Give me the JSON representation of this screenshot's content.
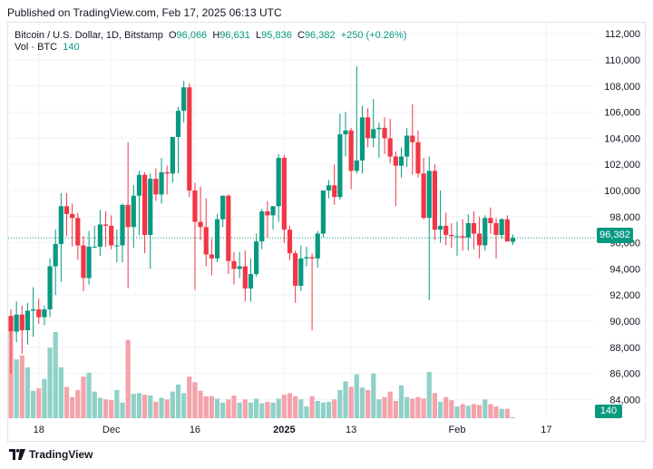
{
  "header": {
    "published": "Published on TradingView.com, Feb 17, 2025 06:13 UTC"
  },
  "legend": {
    "symbol": "Bitcoin / U.S. Dollar, 1D, Bitstamp",
    "o_label": "O",
    "o_value": "96,066",
    "h_label": "H",
    "h_value": "96,631",
    "l_label": "L",
    "l_value": "95,836",
    "c_label": "C",
    "c_value": "96,382",
    "change": "+250 (+0.26%)",
    "vol_label": "Vol · BTC",
    "vol_value": "140"
  },
  "price_badge": "96,382",
  "volume_badge": "140",
  "footer": {
    "brand": "TradingView"
  },
  "colors": {
    "up": "#089981",
    "down": "#f23645",
    "up_vol": "#8fd1c8",
    "down_vol": "#f4a3ab",
    "grid": "#f0f3fa"
  },
  "chart_data": {
    "type": "candlestick",
    "title": "Bitcoin / U.S. Dollar, 1D, Bitstamp",
    "ylim": [
      82500,
      112500
    ],
    "y_ticks": [
      84000,
      86000,
      88000,
      90000,
      92000,
      94000,
      96000,
      98000,
      100000,
      102000,
      104000,
      106000,
      108000,
      110000,
      112000
    ],
    "y_tick_labels": [
      "84,000",
      "86,000",
      "88,000",
      "90,000",
      "92,000",
      "94,000",
      "96,000",
      "98,000",
      "100,000",
      "102,000",
      "104,000",
      "106,000",
      "108,000",
      "110,000",
      "112,000"
    ],
    "x_labels": [
      {
        "label": "18",
        "index": 5
      },
      {
        "label": "Dec",
        "index": 18
      },
      {
        "label": "16",
        "index": 33
      },
      {
        "label": "2025",
        "index": 49
      },
      {
        "label": "13",
        "index": 61
      },
      {
        "label": "Feb",
        "index": 80
      },
      {
        "label": "17",
        "index": 96
      }
    ],
    "last_price": 96382,
    "candles": [
      [
        90400,
        90900,
        86000,
        89200,
        11000
      ],
      [
        89200,
        91500,
        88400,
        90500,
        7500
      ],
      [
        90500,
        91200,
        87500,
        89300,
        8000
      ],
      [
        89300,
        91400,
        88200,
        90800,
        6500
      ],
      [
        90800,
        92600,
        88800,
        90900,
        3500
      ],
      [
        90900,
        91700,
        89800,
        90300,
        3800
      ],
      [
        90300,
        91200,
        89700,
        90900,
        5000
      ],
      [
        90900,
        94800,
        90300,
        94200,
        9000
      ],
      [
        94200,
        97000,
        92000,
        95900,
        11000
      ],
      [
        95900,
        99800,
        93000,
        98800,
        6500
      ],
      [
        98800,
        99800,
        96500,
        98200,
        4000
      ],
      [
        98200,
        99000,
        95700,
        97900,
        2700
      ],
      [
        97900,
        98300,
        94700,
        95800,
        3600
      ],
      [
        95800,
        96500,
        92300,
        93300,
        5300
      ],
      [
        93300,
        96900,
        92800,
        95700,
        5800
      ],
      [
        95700,
        97300,
        95600,
        95700,
        3400
      ],
      [
        95700,
        98500,
        95000,
        97400,
        2600
      ],
      [
        97400,
        98400,
        95700,
        97300,
        2400
      ],
      [
        97300,
        98100,
        95500,
        95800,
        2300
      ],
      [
        95800,
        97000,
        94500,
        95800,
        3600
      ],
      [
        95800,
        99000,
        94500,
        98900,
        2000
      ],
      [
        98900,
        103700,
        92500,
        97200,
        10000
      ],
      [
        97200,
        100400,
        95600,
        99600,
        3100
      ],
      [
        99600,
        101500,
        96600,
        101200,
        3200
      ],
      [
        101200,
        101400,
        95200,
        96600,
        3000
      ],
      [
        96600,
        101300,
        94000,
        100900,
        2900
      ],
      [
        100900,
        101700,
        99200,
        99700,
        2100
      ],
      [
        99700,
        102500,
        99000,
        101400,
        2600
      ],
      [
        101400,
        101900,
        99700,
        101300,
        2400
      ],
      [
        101300,
        104000,
        100600,
        104100,
        3400
      ],
      [
        104100,
        106400,
        101300,
        106100,
        4300
      ],
      [
        106100,
        108400,
        105200,
        107900,
        3200
      ],
      [
        107900,
        108200,
        99500,
        100000,
        5300
      ],
      [
        100000,
        100600,
        92400,
        97600,
        4600
      ],
      [
        97600,
        100300,
        96200,
        97200,
        3500
      ],
      [
        97200,
        99400,
        94200,
        95100,
        2800
      ],
      [
        95100,
        96300,
        93500,
        94800,
        2800
      ],
      [
        94800,
        98200,
        94500,
        97800,
        2500
      ],
      [
        97800,
        99600,
        97200,
        99600,
        2000
      ],
      [
        99600,
        99700,
        93600,
        94600,
        2400
      ],
      [
        94600,
        95300,
        92800,
        94000,
        2900
      ],
      [
        94000,
        95300,
        93300,
        94200,
        2000
      ],
      [
        94200,
        95400,
        91500,
        92500,
        2400
      ],
      [
        92500,
        94800,
        91500,
        93600,
        2000
      ],
      [
        93600,
        96700,
        93400,
        96100,
        2500
      ],
      [
        96100,
        98600,
        95500,
        98400,
        1900
      ],
      [
        98400,
        99200,
        96400,
        98100,
        2100
      ],
      [
        98100,
        98800,
        97000,
        98800,
        2000
      ],
      [
        98800,
        102800,
        97600,
        102500,
        2500
      ],
      [
        102500,
        102700,
        96000,
        97000,
        3000
      ],
      [
        97000,
        97300,
        94700,
        95200,
        3200
      ],
      [
        95200,
        95400,
        91400,
        92700,
        2800
      ],
      [
        92700,
        95800,
        92300,
        94800,
        2400
      ],
      [
        94800,
        95700,
        94200,
        94900,
        1500
      ],
      [
        94900,
        95200,
        89300,
        94800,
        2800
      ],
      [
        94800,
        96900,
        94100,
        96700,
        2200
      ],
      [
        96700,
        100000,
        96400,
        100000,
        2000
      ],
      [
        100000,
        100800,
        99400,
        100400,
        2100
      ],
      [
        100400,
        102000,
        98900,
        99500,
        2400
      ],
      [
        99500,
        105900,
        99300,
        104300,
        3600
      ],
      [
        104300,
        106000,
        102600,
        104600,
        4700
      ],
      [
        104600,
        104800,
        100100,
        101500,
        4000
      ],
      [
        101500,
        109500,
        101300,
        102300,
        5600
      ],
      [
        102300,
        106500,
        101300,
        105600,
        3900
      ],
      [
        105600,
        106300,
        103300,
        104000,
        3600
      ],
      [
        104000,
        107000,
        103300,
        104700,
        5700
      ],
      [
        104700,
        105200,
        102500,
        104800,
        2400
      ],
      [
        104800,
        105600,
        102800,
        104000,
        2700
      ],
      [
        104000,
        105500,
        102100,
        102600,
        3400
      ],
      [
        102600,
        103000,
        98800,
        101900,
        2200
      ],
      [
        101900,
        103300,
        101000,
        102600,
        4200
      ],
      [
        102600,
        104800,
        101800,
        104200,
        2700
      ],
      [
        104200,
        106600,
        101200,
        103700,
        2500
      ],
      [
        103700,
        104600,
        101000,
        101300,
        2700
      ],
      [
        101300,
        102500,
        97800,
        97900,
        2500
      ],
      [
        97900,
        102600,
        91600,
        101500,
        5900
      ],
      [
        101500,
        102000,
        96200,
        97000,
        3200
      ],
      [
        97000,
        100000,
        96000,
        97300,
        2100
      ],
      [
        97300,
        98300,
        95800,
        96600,
        2700
      ],
      [
        96600,
        97500,
        95600,
        96500,
        2300
      ],
      [
        96500,
        97600,
        95000,
        96500,
        1500
      ],
      [
        96500,
        97800,
        95400,
        96400,
        1800
      ],
      [
        96400,
        98200,
        95400,
        97500,
        1600
      ],
      [
        97500,
        98400,
        95500,
        96700,
        1800
      ],
      [
        96700,
        98000,
        94800,
        95800,
        1700
      ],
      [
        95800,
        98100,
        95400,
        97900,
        2400
      ],
      [
        97900,
        98700,
        96700,
        97500,
        1800
      ],
      [
        97500,
        97900,
        94800,
        96600,
        1500
      ],
      [
        96600,
        97900,
        96300,
        97800,
        1200
      ],
      [
        97800,
        98100,
        96300,
        96100,
        1200
      ],
      [
        96066,
        96631,
        95836,
        96382,
        140
      ]
    ]
  }
}
